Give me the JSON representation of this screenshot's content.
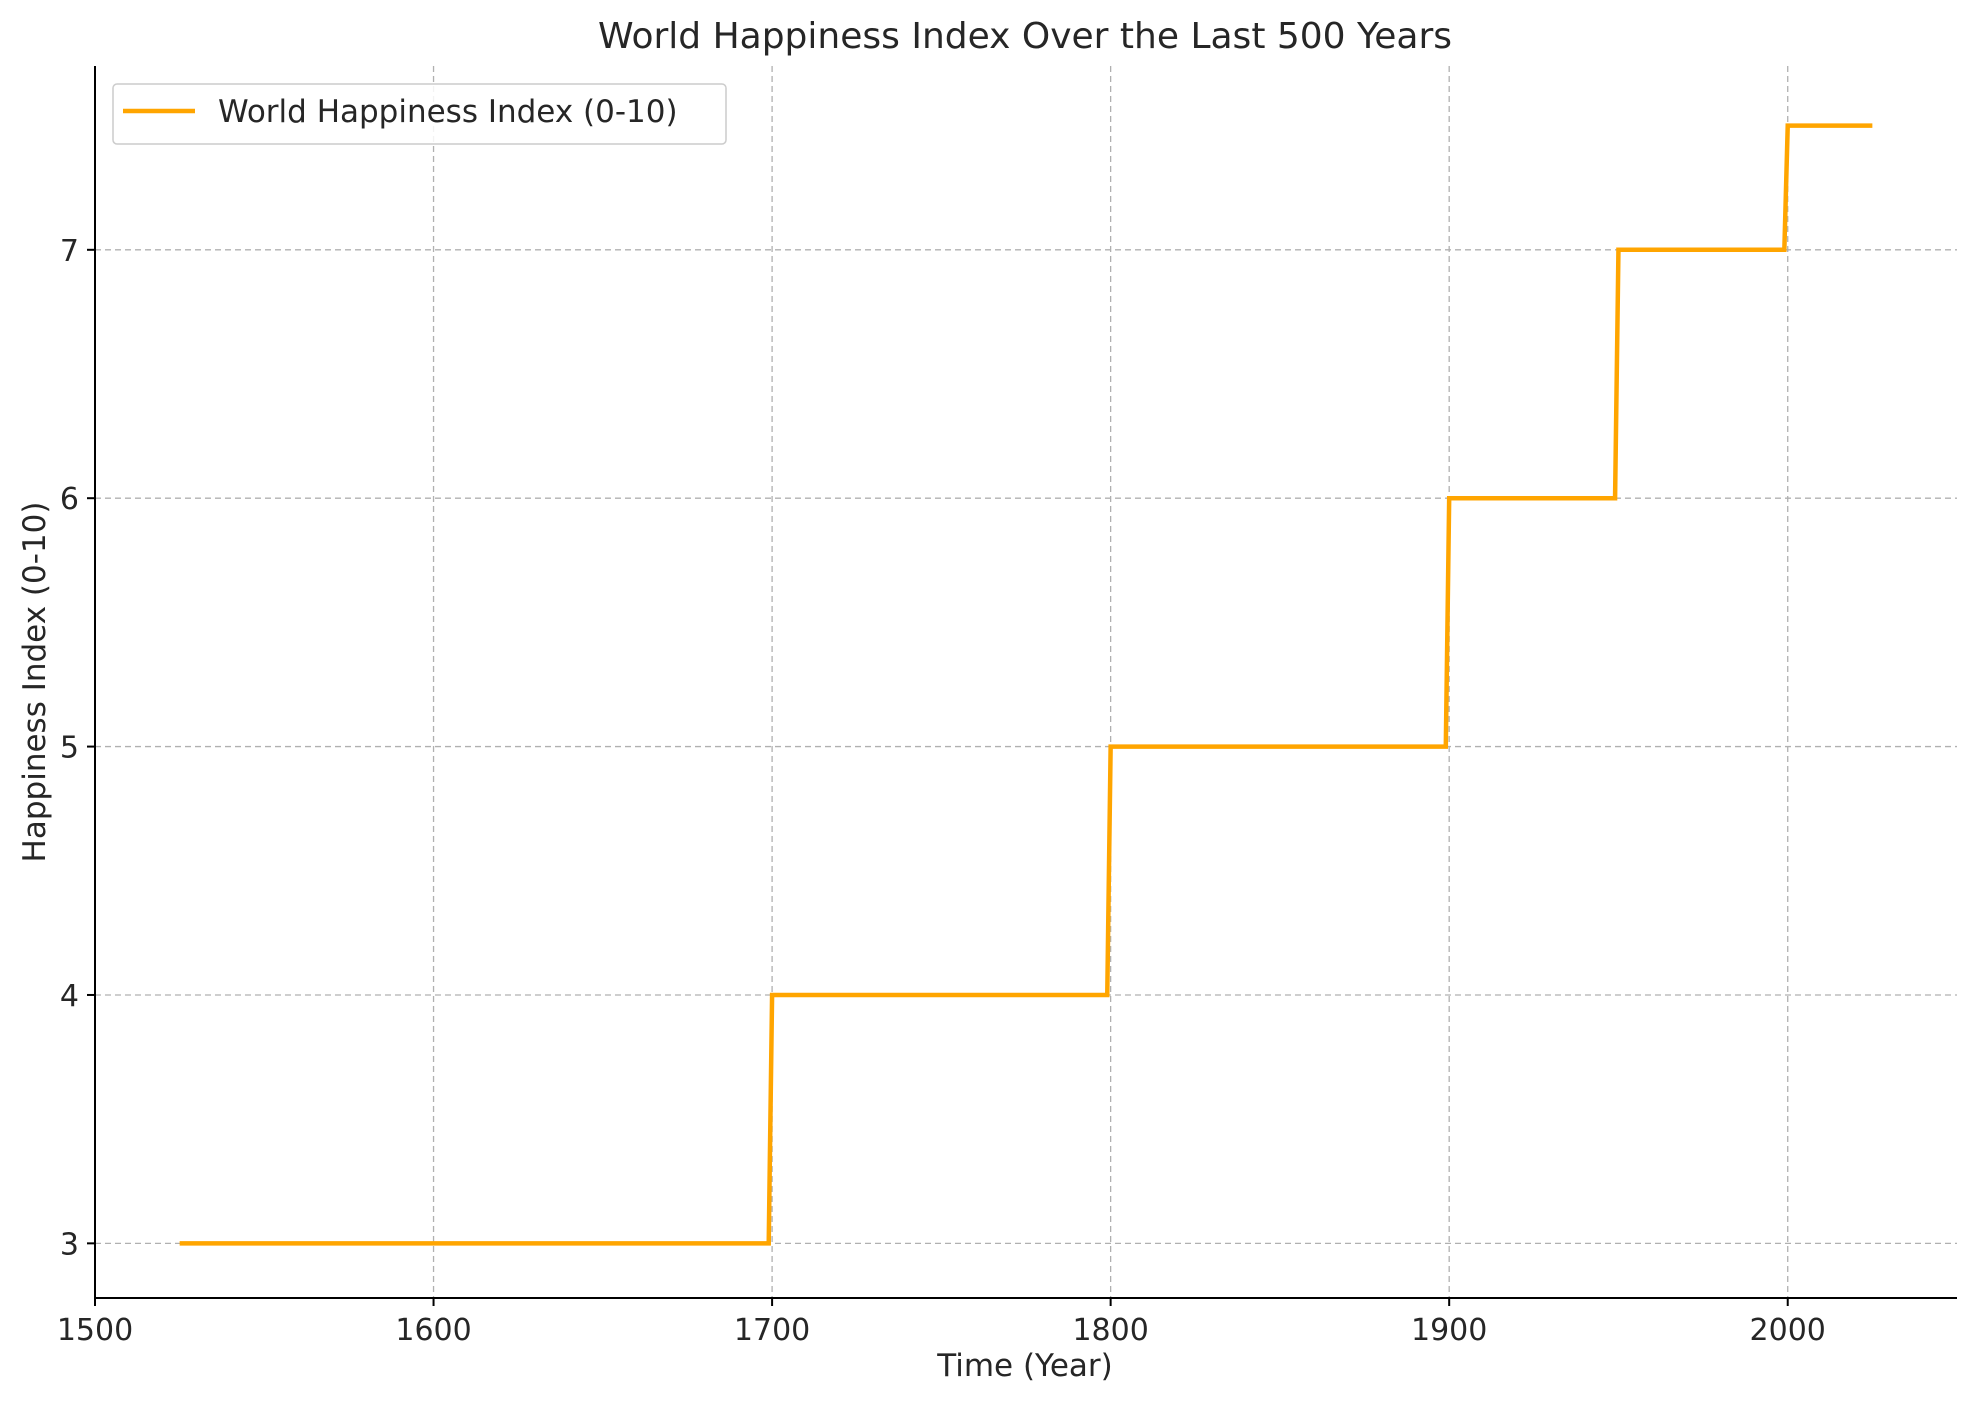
{
  "chart_data": {
    "type": "line",
    "title": "World Happiness Index Over the Last 500 Years",
    "xlabel": "Time (Year)",
    "ylabel": "Happiness Index (0-10)",
    "xlim": [
      1500,
      2050
    ],
    "ylim": [
      2.78,
      7.74
    ],
    "xticks": [
      1500,
      1600,
      1700,
      1800,
      1900,
      2000
    ],
    "yticks": [
      3,
      4,
      5,
      6,
      7
    ],
    "grid": true,
    "legend_position": "top-left",
    "series": [
      {
        "name": "World Happiness Index (0-10)",
        "color": "#ffa500",
        "x": [
          1525,
          1699,
          1700,
          1799,
          1800,
          1899,
          1900,
          1949,
          1950,
          1999,
          2000,
          2025
        ],
        "y": [
          3,
          3,
          4,
          4,
          5,
          5,
          6,
          6,
          7,
          7,
          7.5,
          7.5
        ]
      }
    ]
  }
}
